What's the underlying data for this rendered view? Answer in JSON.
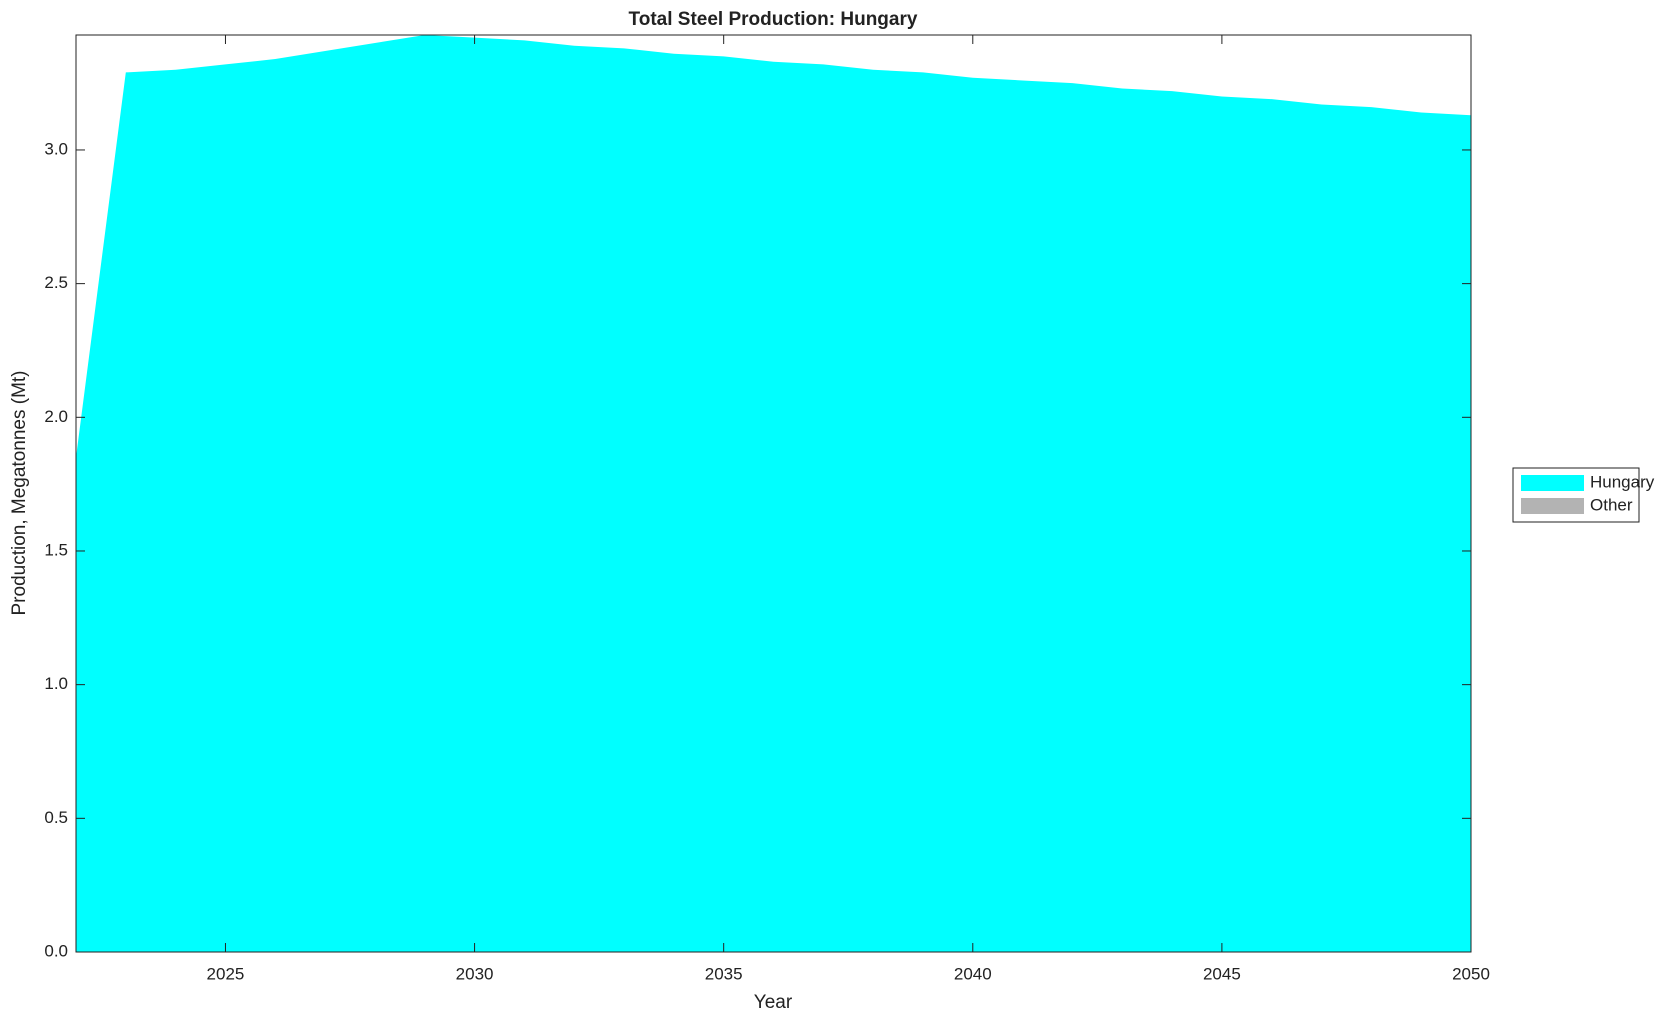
{
  "chart_data": {
    "type": "stacked_area",
    "title": "Total Steel Production: Hungary",
    "x_label": "Year",
    "y_label": "Production, Megatonnes (Mt)",
    "x": [
      2022,
      2023,
      2024,
      2025,
      2026,
      2027,
      2028,
      2029,
      2030,
      2031,
      2032,
      2033,
      2034,
      2035,
      2036,
      2037,
      2038,
      2039,
      2040,
      2041,
      2042,
      2043,
      2044,
      2045,
      2046,
      2047,
      2048,
      2049,
      2050
    ],
    "series": [
      {
        "name": "Hungary",
        "color": "#00ffff",
        "values": [
          1.85,
          3.29,
          3.3,
          3.32,
          3.34,
          3.37,
          3.4,
          3.43,
          3.42,
          3.41,
          3.39,
          3.38,
          3.36,
          3.35,
          3.33,
          3.32,
          3.3,
          3.29,
          3.27,
          3.26,
          3.25,
          3.23,
          3.22,
          3.2,
          3.19,
          3.17,
          3.16,
          3.14,
          3.13
        ]
      },
      {
        "name": "Other",
        "color": "#b3b3b3",
        "values": [
          0,
          0,
          0,
          0,
          0,
          0,
          0,
          0,
          0,
          0,
          0,
          0,
          0,
          0,
          0,
          0,
          0,
          0,
          0,
          0,
          0,
          0,
          0,
          0,
          0,
          0,
          0,
          0,
          0
        ]
      }
    ],
    "xlim": [
      2022,
      2050
    ],
    "xticks": [
      2025,
      2030,
      2035,
      2040,
      2045,
      2050
    ],
    "ylim": [
      0,
      3.43
    ],
    "yticks": [
      {
        "value": 0,
        "label": "0.0"
      },
      0.5,
      {
        "value": 1,
        "label": "1.0"
      },
      1.5,
      {
        "value": 2,
        "label": "2.0"
      },
      2.5,
      {
        "value": 3,
        "label": "3.0"
      }
    ],
    "legend": "right"
  }
}
